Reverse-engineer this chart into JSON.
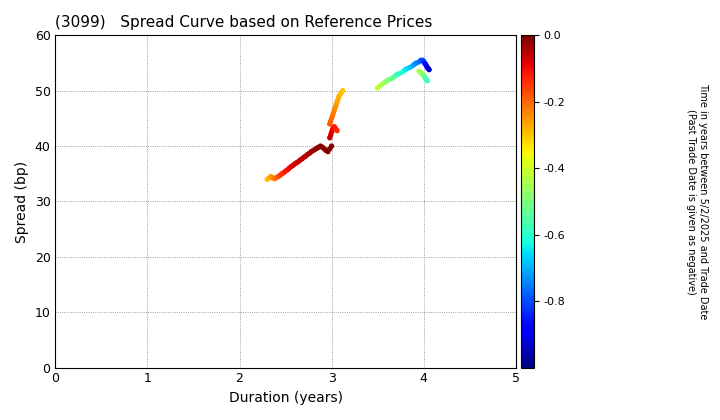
{
  "title": "(3099)   Spread Curve based on Reference Prices",
  "xlabel": "Duration (years)",
  "ylabel": "Spread (bp)",
  "colorbar_label_line1": "Time in years between 5/2/2025 and Trade Date",
  "colorbar_label_line2": "(Past Trade Date is given as negative)",
  "xlim": [
    0,
    5
  ],
  "ylim": [
    0,
    60
  ],
  "xticks": [
    0,
    1,
    2,
    3,
    4,
    5
  ],
  "yticks": [
    0,
    10,
    20,
    30,
    40,
    50,
    60
  ],
  "cmap": "jet",
  "vmin": -1.0,
  "vmax": 0.0,
  "background_color": "#ffffff",
  "scatter_s": 15,
  "scatter_data": [
    {
      "d": 2.3,
      "s": 34.0,
      "t": -0.3
    },
    {
      "d": 2.32,
      "s": 34.2,
      "t": -0.28
    },
    {
      "d": 2.34,
      "s": 34.5,
      "t": -0.26
    },
    {
      "d": 2.36,
      "s": 34.3,
      "t": -0.24
    },
    {
      "d": 2.38,
      "s": 34.1,
      "t": -0.22
    },
    {
      "d": 2.4,
      "s": 34.3,
      "t": -0.2
    },
    {
      "d": 2.42,
      "s": 34.5,
      "t": -0.18
    },
    {
      "d": 2.44,
      "s": 34.7,
      "t": -0.16
    },
    {
      "d": 2.46,
      "s": 35.0,
      "t": -0.14
    },
    {
      "d": 2.48,
      "s": 35.2,
      "t": -0.13
    },
    {
      "d": 2.5,
      "s": 35.5,
      "t": -0.12
    },
    {
      "d": 2.52,
      "s": 35.7,
      "t": -0.11
    },
    {
      "d": 2.54,
      "s": 36.0,
      "t": -0.1
    },
    {
      "d": 2.56,
      "s": 36.3,
      "t": -0.09
    },
    {
      "d": 2.58,
      "s": 36.5,
      "t": -0.08
    },
    {
      "d": 2.6,
      "s": 36.8,
      "t": -0.08
    },
    {
      "d": 2.62,
      "s": 37.0,
      "t": -0.07
    },
    {
      "d": 2.64,
      "s": 37.2,
      "t": -0.07
    },
    {
      "d": 2.66,
      "s": 37.5,
      "t": -0.06
    },
    {
      "d": 2.68,
      "s": 37.7,
      "t": -0.06
    },
    {
      "d": 2.7,
      "s": 38.0,
      "t": -0.05
    },
    {
      "d": 2.72,
      "s": 38.2,
      "t": -0.05
    },
    {
      "d": 2.74,
      "s": 38.5,
      "t": -0.04
    },
    {
      "d": 2.76,
      "s": 38.7,
      "t": -0.04
    },
    {
      "d": 2.78,
      "s": 39.0,
      "t": -0.03
    },
    {
      "d": 2.8,
      "s": 39.2,
      "t": -0.03
    },
    {
      "d": 2.82,
      "s": 39.4,
      "t": -0.02
    },
    {
      "d": 2.84,
      "s": 39.6,
      "t": -0.02
    },
    {
      "d": 2.86,
      "s": 39.8,
      "t": -0.01
    },
    {
      "d": 2.88,
      "s": 40.0,
      "t": -0.01
    },
    {
      "d": 2.9,
      "s": 39.8,
      "t": -0.01
    },
    {
      "d": 2.92,
      "s": 39.5,
      "t": -0.01
    },
    {
      "d": 2.94,
      "s": 39.2,
      "t": 0.0
    },
    {
      "d": 2.96,
      "s": 39.0,
      "t": 0.0
    },
    {
      "d": 2.98,
      "s": 39.5,
      "t": 0.0
    },
    {
      "d": 3.0,
      "s": 40.0,
      "t": 0.0
    },
    {
      "d": 2.98,
      "s": 41.5,
      "t": -0.06
    },
    {
      "d": 2.99,
      "s": 42.0,
      "t": -0.07
    },
    {
      "d": 3.0,
      "s": 42.5,
      "t": -0.08
    },
    {
      "d": 3.01,
      "s": 43.0,
      "t": -0.09
    },
    {
      "d": 3.02,
      "s": 43.3,
      "t": -0.1
    },
    {
      "d": 3.03,
      "s": 43.5,
      "t": -0.11
    },
    {
      "d": 3.04,
      "s": 43.2,
      "t": -0.12
    },
    {
      "d": 3.05,
      "s": 43.0,
      "t": -0.13
    },
    {
      "d": 3.06,
      "s": 42.8,
      "t": -0.14
    },
    {
      "d": 2.98,
      "s": 44.0,
      "t": -0.18
    },
    {
      "d": 2.99,
      "s": 44.5,
      "t": -0.19
    },
    {
      "d": 3.0,
      "s": 45.0,
      "t": -0.2
    },
    {
      "d": 3.01,
      "s": 45.5,
      "t": -0.21
    },
    {
      "d": 3.02,
      "s": 46.0,
      "t": -0.22
    },
    {
      "d": 3.03,
      "s": 46.5,
      "t": -0.23
    },
    {
      "d": 3.04,
      "s": 47.0,
      "t": -0.24
    },
    {
      "d": 3.05,
      "s": 47.5,
      "t": -0.25
    },
    {
      "d": 3.06,
      "s": 48.0,
      "t": -0.26
    },
    {
      "d": 3.07,
      "s": 48.5,
      "t": -0.27
    },
    {
      "d": 3.08,
      "s": 49.0,
      "t": -0.28
    },
    {
      "d": 3.1,
      "s": 49.5,
      "t": -0.29
    },
    {
      "d": 3.12,
      "s": 50.0,
      "t": -0.3
    },
    {
      "d": 3.5,
      "s": 50.5,
      "t": -0.42
    },
    {
      "d": 3.52,
      "s": 50.8,
      "t": -0.43
    },
    {
      "d": 3.55,
      "s": 51.2,
      "t": -0.44
    },
    {
      "d": 3.58,
      "s": 51.5,
      "t": -0.46
    },
    {
      "d": 3.6,
      "s": 51.8,
      "t": -0.48
    },
    {
      "d": 3.62,
      "s": 52.0,
      "t": -0.5
    },
    {
      "d": 3.65,
      "s": 52.2,
      "t": -0.52
    },
    {
      "d": 3.68,
      "s": 52.5,
      "t": -0.54
    },
    {
      "d": 3.7,
      "s": 52.8,
      "t": -0.56
    },
    {
      "d": 3.72,
      "s": 53.0,
      "t": -0.58
    },
    {
      "d": 3.75,
      "s": 53.2,
      "t": -0.6
    },
    {
      "d": 3.78,
      "s": 53.5,
      "t": -0.62
    },
    {
      "d": 3.8,
      "s": 53.8,
      "t": -0.64
    },
    {
      "d": 3.82,
      "s": 54.0,
      "t": -0.66
    },
    {
      "d": 3.85,
      "s": 54.2,
      "t": -0.68
    },
    {
      "d": 3.88,
      "s": 54.5,
      "t": -0.7
    },
    {
      "d": 3.9,
      "s": 54.8,
      "t": -0.72
    },
    {
      "d": 3.92,
      "s": 55.0,
      "t": -0.74
    },
    {
      "d": 3.95,
      "s": 55.2,
      "t": -0.76
    },
    {
      "d": 3.97,
      "s": 55.5,
      "t": -0.78
    },
    {
      "d": 3.99,
      "s": 55.5,
      "t": -0.8
    },
    {
      "d": 4.0,
      "s": 55.3,
      "t": -0.82
    },
    {
      "d": 4.01,
      "s": 55.0,
      "t": -0.84
    },
    {
      "d": 4.02,
      "s": 54.8,
      "t": -0.86
    },
    {
      "d": 4.03,
      "s": 54.5,
      "t": -0.88
    },
    {
      "d": 4.04,
      "s": 54.2,
      "t": -0.9
    },
    {
      "d": 4.05,
      "s": 54.0,
      "t": -0.92
    },
    {
      "d": 4.06,
      "s": 53.8,
      "t": -0.94
    },
    {
      "d": 3.95,
      "s": 53.5,
      "t": -0.44
    },
    {
      "d": 3.97,
      "s": 53.2,
      "t": -0.46
    },
    {
      "d": 3.99,
      "s": 53.0,
      "t": -0.48
    },
    {
      "d": 4.0,
      "s": 52.8,
      "t": -0.5
    },
    {
      "d": 4.01,
      "s": 52.5,
      "t": -0.52
    },
    {
      "d": 4.02,
      "s": 52.2,
      "t": -0.54
    },
    {
      "d": 4.03,
      "s": 52.0,
      "t": -0.56
    },
    {
      "d": 4.04,
      "s": 51.8,
      "t": -0.58
    }
  ]
}
